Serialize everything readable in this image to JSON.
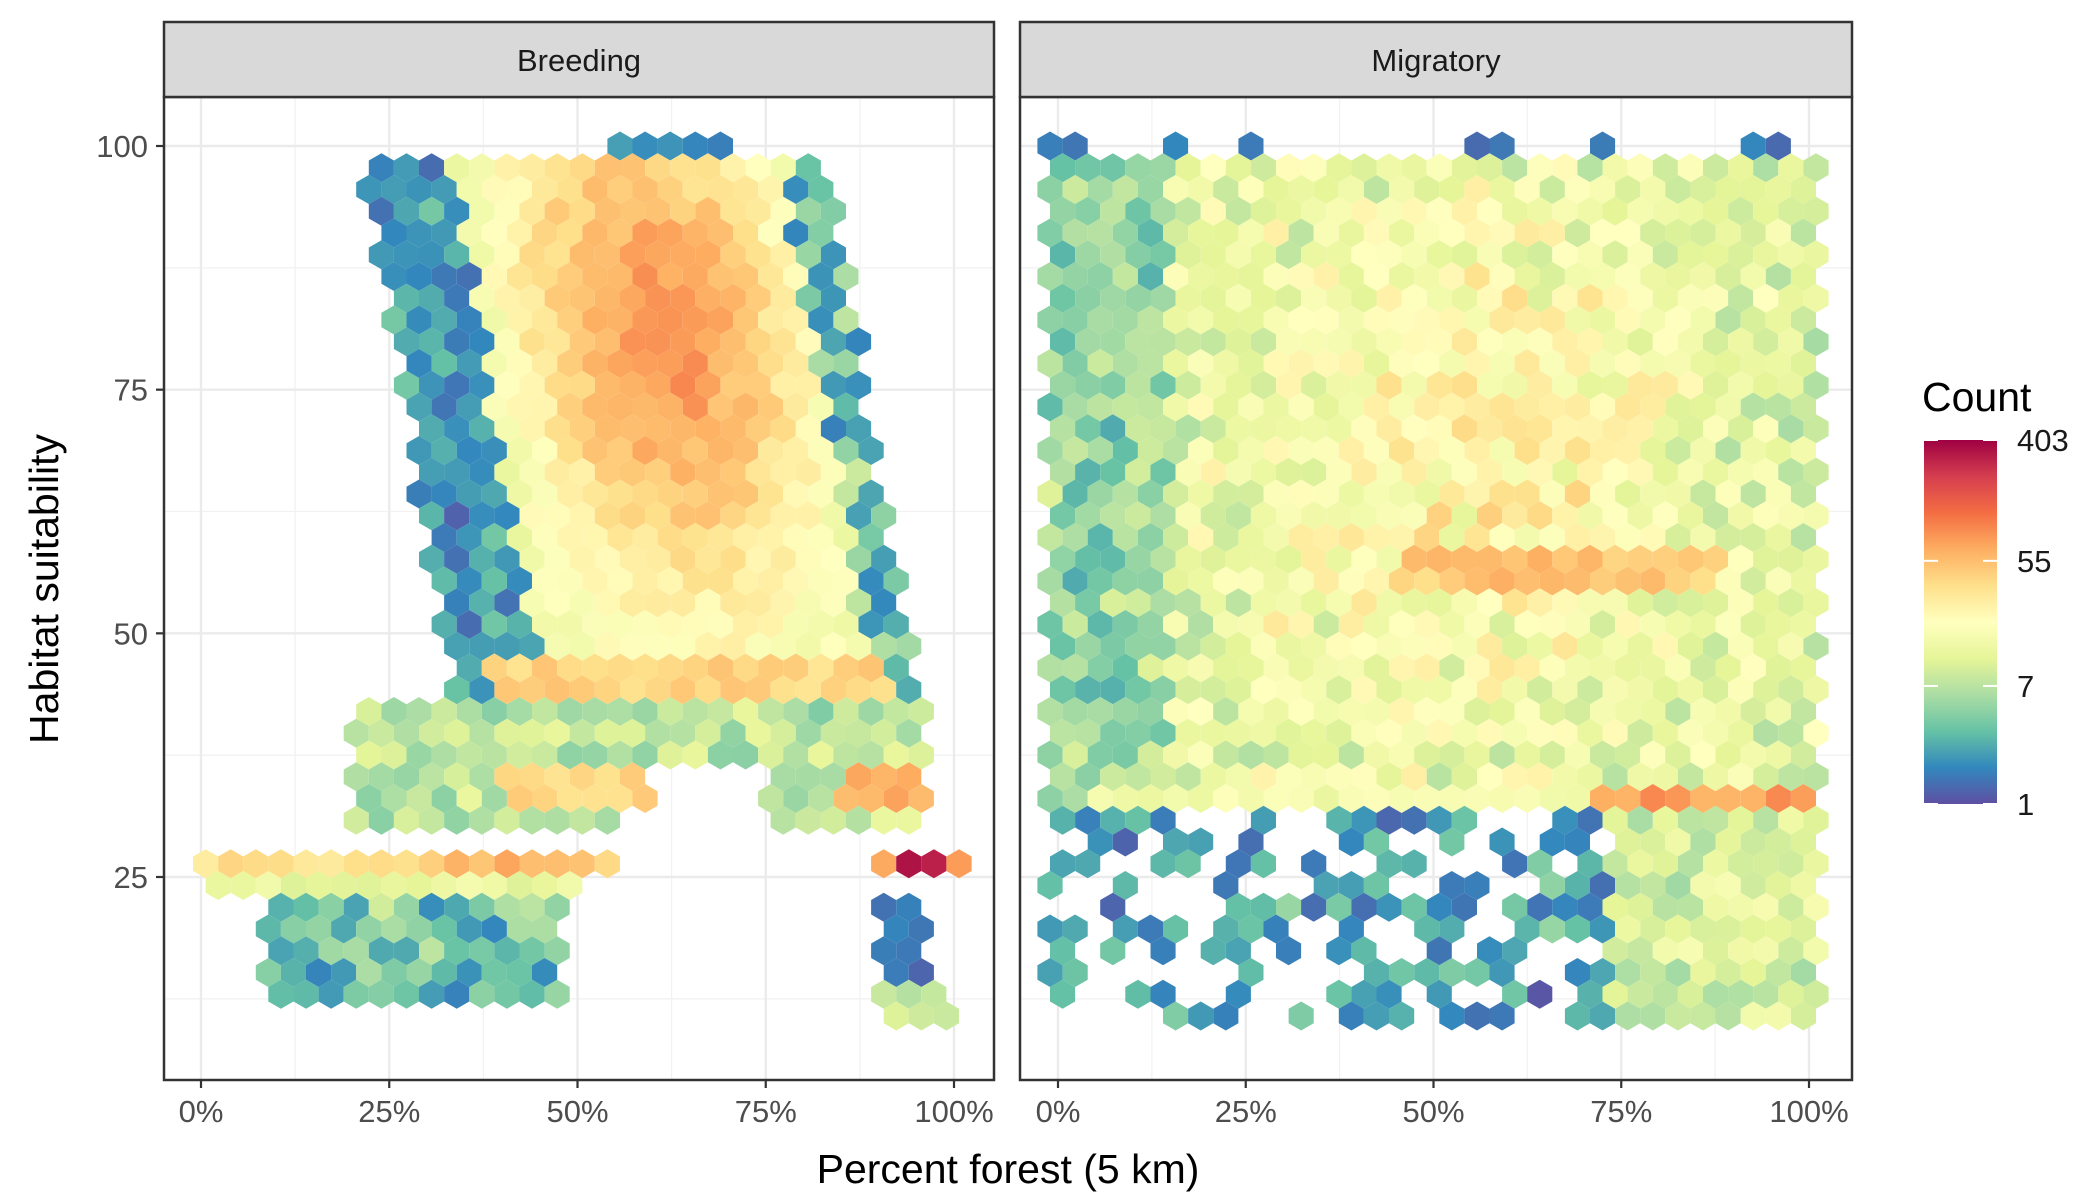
{
  "chart_data": {
    "type": "hexbin",
    "xlabel": "Percent forest (5 km)",
    "ylabel": "Habitat suitability",
    "xlim": [
      0,
      100
    ],
    "ylim": [
      8,
      100
    ],
    "x_ticks": [
      0,
      25,
      50,
      75,
      100
    ],
    "x_tick_labels": [
      "0%",
      "25%",
      "50%",
      "75%",
      "100%"
    ],
    "y_ticks": [
      25,
      50,
      75,
      100
    ],
    "y_tick_labels": [
      "25",
      "50",
      "75",
      "100"
    ],
    "grid": true,
    "panels": [
      {
        "title": "Breeding"
      },
      {
        "title": "Migratory"
      }
    ],
    "legend": {
      "title": "Count",
      "position": "right",
      "scale": "log",
      "ticks": [
        1,
        7,
        55,
        403
      ],
      "tick_labels": [
        "1",
        "7",
        "55",
        "403"
      ],
      "min": 1,
      "max": 403,
      "colors": [
        "#5e4fa2",
        "#3288bd",
        "#66c2a5",
        "#abdda4",
        "#e6f598",
        "#ffffbf",
        "#fee08b",
        "#fdae61",
        "#f46d43",
        "#d53e4f",
        "#9e0142"
      ]
    }
  }
}
